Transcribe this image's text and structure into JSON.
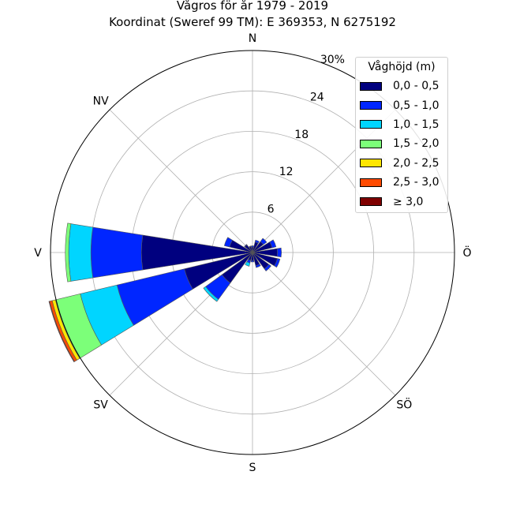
{
  "title_line1": "Vågros för år 1979 - 2019",
  "title_line2": "Koordinat (Sweref 99 TM): E 369353, N 6275192",
  "chart_data": {
    "type": "bar",
    "subtype": "polar-stacked-wind-rose",
    "directions": [
      "N",
      "NNÖ",
      "NÖ",
      "ÖNÖ",
      "Ö",
      "ÖSÖ",
      "SÖ",
      "SSÖ",
      "S",
      "SSV",
      "SV",
      "VSV",
      "V",
      "VNV",
      "NV",
      "NNV"
    ],
    "direction_labels": [
      "N",
      "Ö",
      "S",
      "V",
      "NV",
      "SV",
      "SÖ"
    ],
    "radial_ticks": [
      6,
      12,
      18,
      24
    ],
    "radial_tick_labels": [
      "6",
      "12",
      "18",
      "24",
      "30%"
    ],
    "rlim": [
      0,
      30
    ],
    "grid": true,
    "legend_title": "Våghöjd (m)",
    "legend_position": "top-right",
    "series": [
      {
        "name": "0,0 - 0,5",
        "color": "#00007f",
        "values": [
          0.8,
          1.6,
          2.0,
          3.0,
          3.7,
          3.8,
          3.0,
          2.0,
          1.2,
          1.2,
          5.6,
          10.4,
          16.5,
          3.5,
          1.4,
          0.9
        ]
      },
      {
        "name": "0,5 - 1,0",
        "color": "#0026ff",
        "values": [
          0.2,
          0.3,
          0.6,
          0.6,
          0.6,
          0.4,
          0.4,
          0.3,
          0.2,
          0.4,
          3.0,
          10.3,
          7.5,
          0.8,
          0.1,
          0.1
        ]
      },
      {
        "name": "1,0 - 1,5",
        "color": "#00d5ff",
        "values": [
          0.0,
          0.0,
          0.0,
          0.0,
          0.0,
          0.0,
          0.0,
          0.0,
          0.0,
          0.5,
          0.4,
          5.6,
          3.3,
          0.0,
          0.0,
          0.0
        ]
      },
      {
        "name": "1,5 - 2,0",
        "color": "#7cff79",
        "values": [
          0.0,
          0.0,
          0.0,
          0.0,
          0.0,
          0.0,
          0.0,
          0.0,
          0.0,
          0.0,
          0.0,
          3.8,
          0.5,
          0.0,
          0.0,
          0.0
        ]
      },
      {
        "name": "2,0 - 2,5",
        "color": "#ffe600",
        "values": [
          0.0,
          0.0,
          0.0,
          0.0,
          0.0,
          0.0,
          0.0,
          0.0,
          0.0,
          0.0,
          0.0,
          0.5,
          0.0,
          0.0,
          0.0,
          0.0
        ]
      },
      {
        "name": "2,5 - 3,0",
        "color": "#ff4a00",
        "values": [
          0.0,
          0.0,
          0.0,
          0.0,
          0.0,
          0.0,
          0.0,
          0.0,
          0.0,
          0.0,
          0.0,
          0.4,
          0.0,
          0.0,
          0.0,
          0.0
        ]
      },
      {
        "name": "≥ 3,0",
        "color": "#7f0000",
        "values": [
          0.0,
          0.0,
          0.0,
          0.0,
          0.0,
          0.0,
          0.0,
          0.0,
          0.0,
          0.0,
          0.0,
          0.1,
          0.0,
          0.0,
          0.0,
          0.0
        ]
      }
    ]
  }
}
